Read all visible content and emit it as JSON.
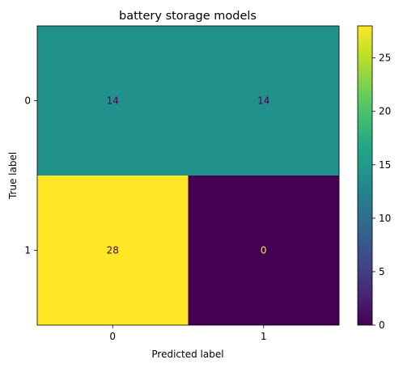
{
  "chart_data": {
    "type": "heatmap",
    "title": "battery storage models",
    "xlabel": "Predicted label",
    "ylabel": "True label",
    "x_categories": [
      "0",
      "1"
    ],
    "y_categories": [
      "0",
      "1"
    ],
    "matrix": [
      [
        14,
        14
      ],
      [
        28,
        0
      ]
    ],
    "colormap": "viridis",
    "colorbar": {
      "range": [
        0,
        28
      ],
      "ticks": [
        0,
        5,
        10,
        15,
        20,
        25
      ],
      "tick_labels": [
        "0",
        "5",
        "10",
        "15",
        "20",
        "25"
      ]
    }
  },
  "colors": {
    "text_on_dark": "#fde725",
    "text_on_light": "#440154",
    "axis": "#000000"
  }
}
